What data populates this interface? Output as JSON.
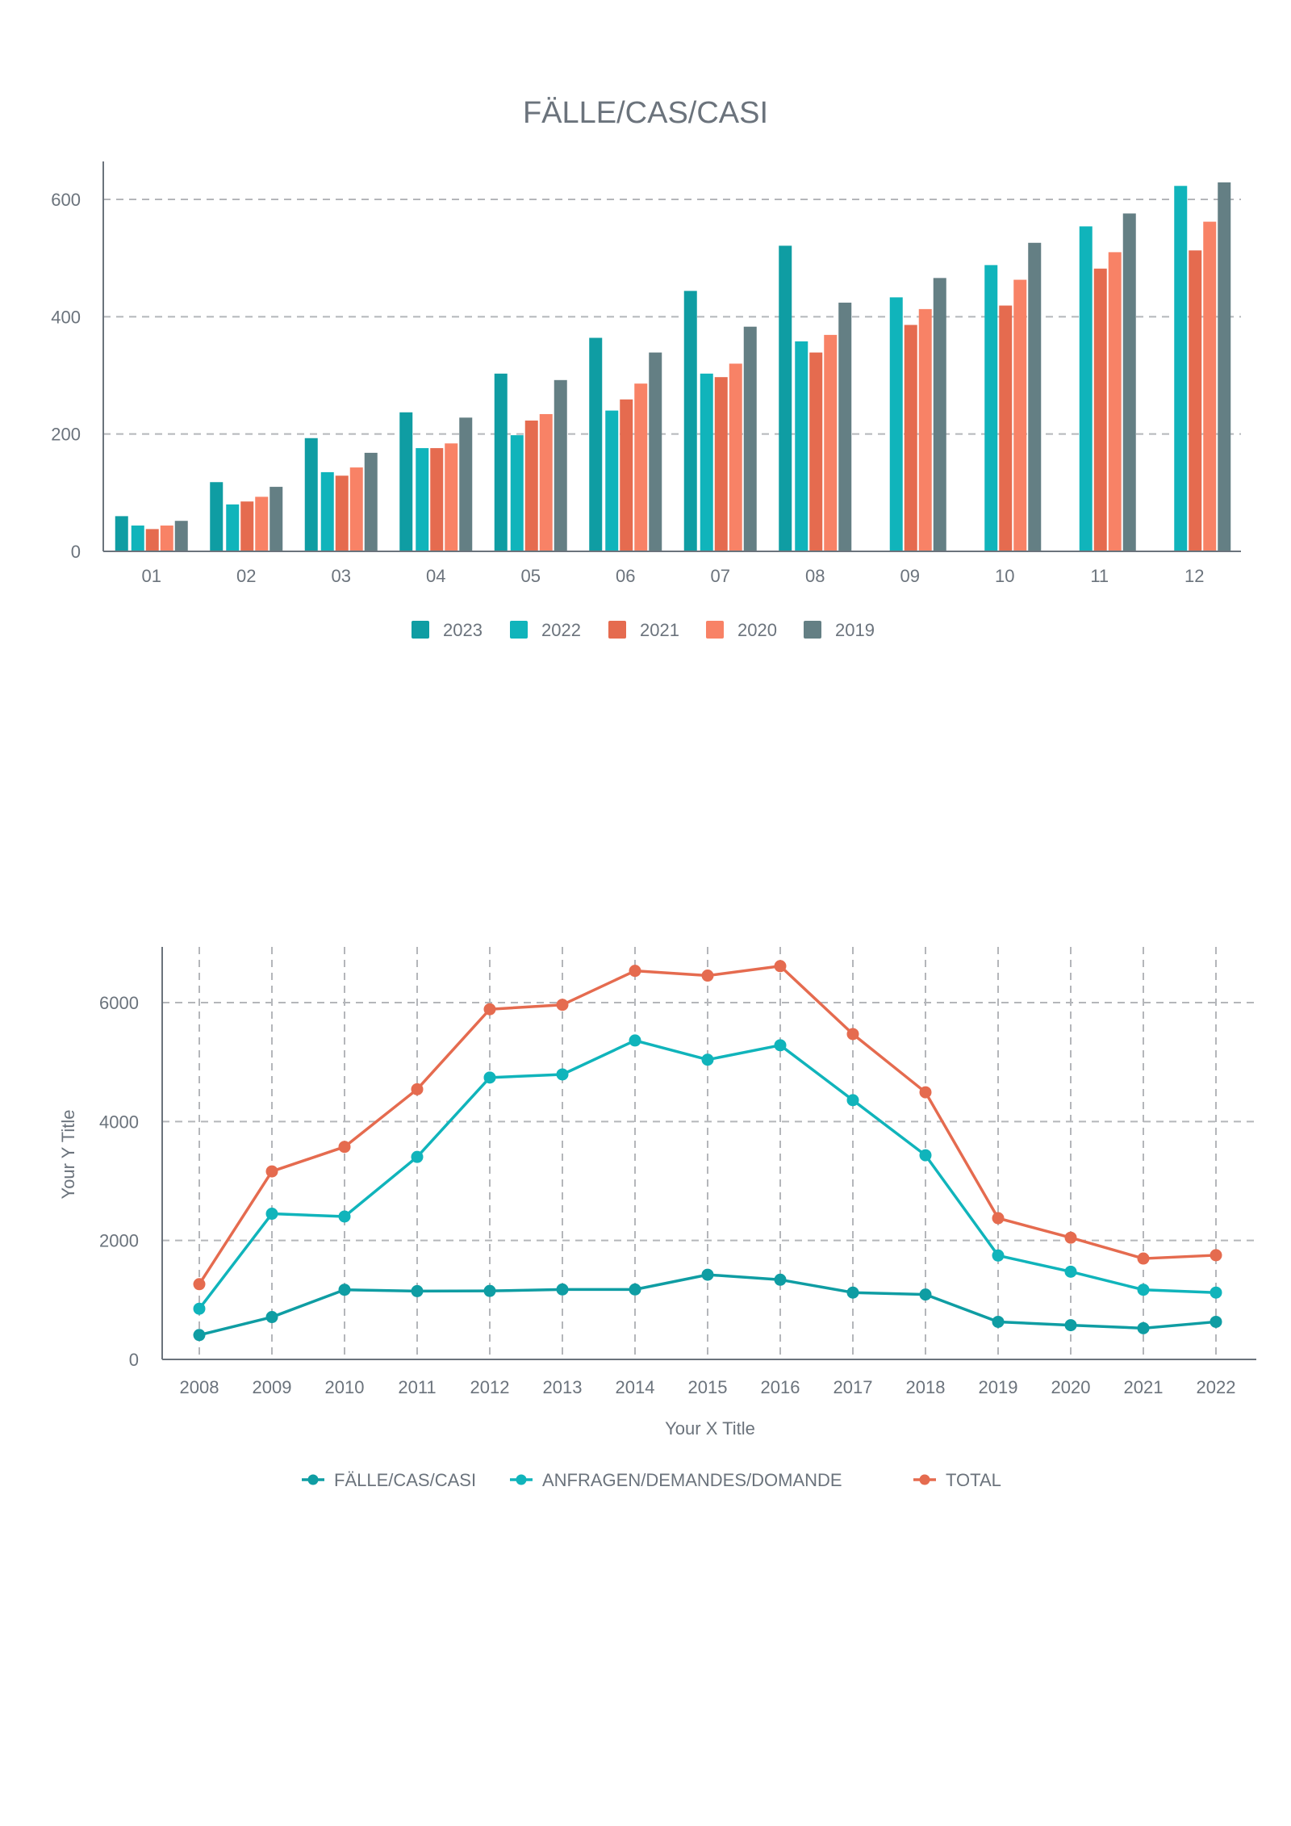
{
  "chart_data": [
    {
      "type": "bar",
      "title": "FÄLLE/CAS/CASI",
      "xlabel": "",
      "ylabel": "",
      "ylim": [
        0,
        660
      ],
      "yticks": [
        0,
        200,
        400,
        600
      ],
      "grid": true,
      "legend_position": "bottom-center",
      "categories": [
        "01",
        "02",
        "03",
        "04",
        "05",
        "06",
        "07",
        "08",
        "09",
        "10",
        "11",
        "12"
      ],
      "series": [
        {
          "name": "2023",
          "color": "#0f9da3",
          "values": [
            60,
            118,
            193,
            237,
            303,
            364,
            444,
            521,
            null,
            null,
            null,
            null
          ]
        },
        {
          "name": "2022",
          "color": "#10b4bb",
          "values": [
            44,
            80,
            135,
            176,
            198,
            240,
            303,
            358,
            433,
            488,
            554,
            623
          ]
        },
        {
          "name": "2021",
          "color": "#e56b4f",
          "values": [
            38,
            85,
            129,
            176,
            223,
            259,
            297,
            339,
            386,
            419,
            482,
            513
          ]
        },
        {
          "name": "2020",
          "color": "#f88266",
          "values": [
            44,
            93,
            143,
            184,
            234,
            286,
            320,
            369,
            413,
            463,
            510,
            562
          ]
        },
        {
          "name": "2019",
          "color": "#647f84",
          "values": [
            52,
            110,
            168,
            228,
            292,
            339,
            383,
            424,
            466,
            526,
            576,
            629
          ]
        }
      ]
    },
    {
      "type": "line",
      "title": "",
      "xlabel": "Your X Title",
      "ylabel": "Your Y Title",
      "ylim": [
        0,
        7000
      ],
      "yticks": [
        0,
        2000,
        4000,
        6000
      ],
      "grid": true,
      "legend_position": "bottom-center",
      "x": [
        "2008",
        "2009",
        "2010",
        "2011",
        "2012",
        "2013",
        "2014",
        "2015",
        "2016",
        "2017",
        "2018",
        "2019",
        "2020",
        "2021",
        "2022"
      ],
      "series": [
        {
          "name": "FÄLLE/CAS/CASI",
          "color": "#0f9da3",
          "values": [
            410,
            712,
            1171,
            1148,
            1152,
            1176,
            1176,
            1424,
            1340,
            1124,
            1091,
            632,
            576,
            525,
            632
          ]
        },
        {
          "name": "ANFRAGEN/DEMANDES/DOMANDE",
          "color": "#10b4bb",
          "values": [
            852,
            2450,
            2403,
            3405,
            4740,
            4792,
            5363,
            5040,
            5283,
            4360,
            3433,
            1747,
            1475,
            1171,
            1124
          ]
        },
        {
          "name": "TOTAL",
          "color": "#e56b4f",
          "values": [
            1265,
            3162,
            3574,
            4543,
            5888,
            5963,
            6534,
            6454,
            6614,
            5471,
            4492,
            2375,
            2047,
            1696,
            1752
          ]
        }
      ]
    }
  ]
}
